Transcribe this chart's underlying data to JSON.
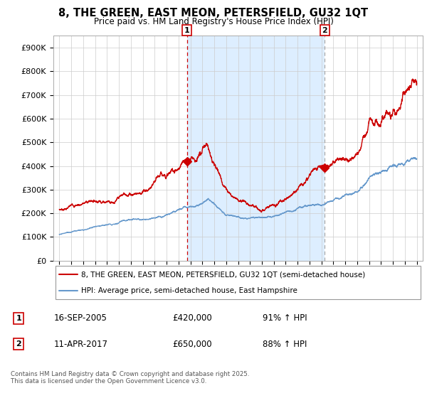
{
  "title": "8, THE GREEN, EAST MEON, PETERSFIELD, GU32 1QT",
  "subtitle": "Price paid vs. HM Land Registry's House Price Index (HPI)",
  "legend_line1": "8, THE GREEN, EAST MEON, PETERSFIELD, GU32 1QT (semi-detached house)",
  "legend_line2": "HPI: Average price, semi-detached house, East Hampshire",
  "footer": "Contains HM Land Registry data © Crown copyright and database right 2025.\nThis data is licensed under the Open Government Licence v3.0.",
  "marker1_date": "16-SEP-2005",
  "marker1_price": "£420,000",
  "marker1_hpi": "91% ↑ HPI",
  "marker1_year": 2005.72,
  "marker1_value": 420000,
  "marker2_date": "11-APR-2017",
  "marker2_price": "£650,000",
  "marker2_hpi": "88% ↑ HPI",
  "marker2_year": 2017.28,
  "marker2_value": 650000,
  "red_color": "#cc0000",
  "blue_color": "#6699cc",
  "bg_white": "#ffffff",
  "bg_between": "#ddeeff",
  "grid_color": "#cccccc",
  "ylim": [
    0,
    950000
  ],
  "yticks": [
    0,
    100000,
    200000,
    300000,
    400000,
    500000,
    600000,
    700000,
    800000,
    900000
  ],
  "ytick_labels": [
    "£0",
    "£100K",
    "£200K",
    "£300K",
    "£400K",
    "£500K",
    "£600K",
    "£700K",
    "£800K",
    "£900K"
  ],
  "xlim_start": 1994.5,
  "xlim_end": 2025.5,
  "hpi_seed": 10,
  "price_seed": 7
}
